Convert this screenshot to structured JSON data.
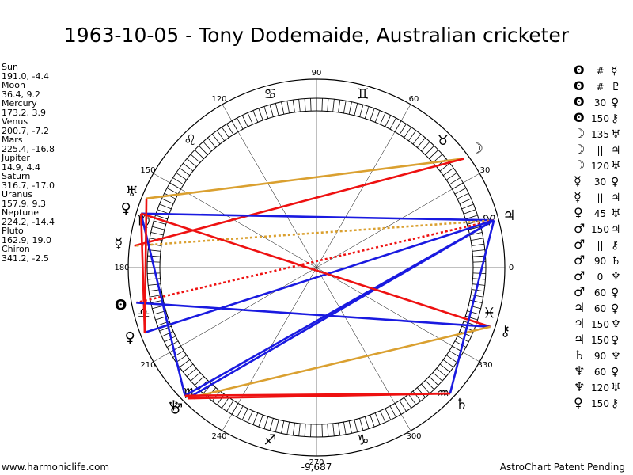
{
  "title": "1963-10-05 - Tony Dodemaide, Australian cricketer",
  "planets": [
    {
      "name": "Sun",
      "glyph": "ʘ",
      "lon": 191.0,
      "lat": -4.4,
      "pos": "191.0, -4.4"
    },
    {
      "name": "Moon",
      "glyph": "☽",
      "lon": 36.4,
      "lat": 9.2,
      "pos": "36.4, 9.2"
    },
    {
      "name": "Mercury",
      "glyph": "☿",
      "lon": 173.2,
      "lat": 3.9,
      "pos": "173.2, 3.9"
    },
    {
      "name": "Venus",
      "glyph": "♀",
      "lon": 200.7,
      "lat": -7.2,
      "pos": "200.7, -7.2"
    },
    {
      "name": "Mars",
      "glyph": "♂",
      "lon": 225.4,
      "lat": -16.8,
      "pos": "225.4, -16.8"
    },
    {
      "name": "Jupiter",
      "glyph": "♃",
      "lon": 14.9,
      "lat": 4.4,
      "pos": "14.9, 4.4"
    },
    {
      "name": "Saturn",
      "glyph": "♄",
      "lon": 316.7,
      "lat": -17.0,
      "pos": "316.7, -17.0"
    },
    {
      "name": "Uranus",
      "glyph": "♅",
      "lon": 157.9,
      "lat": 9.3,
      "pos": "157.9, 9.3"
    },
    {
      "name": "Neptune",
      "glyph": "♆",
      "lon": 224.2,
      "lat": -14.4,
      "pos": "224.2, -14.4"
    },
    {
      "name": "Pluto",
      "glyph": "♀",
      "lon": 162.9,
      "lat": 19.0,
      "pos": "162.9, 19.0"
    },
    {
      "name": "Chiron",
      "glyph": "⚷",
      "lon": 341.2,
      "lat": -2.5,
      "pos": "341.2, -2.5"
    }
  ],
  "aspects": [
    {
      "p1": "ʘ",
      "angle": "#",
      "p2": "☿"
    },
    {
      "p1": "ʘ",
      "angle": "#",
      "p2": "♇"
    },
    {
      "p1": "ʘ",
      "angle": "30",
      "p2": "♀"
    },
    {
      "p1": "ʘ",
      "angle": "150",
      "p2": "⚷"
    },
    {
      "p1": "☽",
      "angle": "135",
      "p2": "♅"
    },
    {
      "p1": "☽",
      "angle": "||",
      "p2": "♃"
    },
    {
      "p1": "☽",
      "angle": "120",
      "p2": "♅"
    },
    {
      "p1": "☿",
      "angle": "30",
      "p2": "♀"
    },
    {
      "p1": "☿",
      "angle": "||",
      "p2": "♃"
    },
    {
      "p1": "♀",
      "angle": "45",
      "p2": "♅"
    },
    {
      "p1": "♂",
      "angle": "150",
      "p2": "♃"
    },
    {
      "p1": "♂",
      "angle": "||",
      "p2": "⚷"
    },
    {
      "p1": "♂",
      "angle": "90",
      "p2": "♄"
    },
    {
      "p1": "♂",
      "angle": "0",
      "p2": "♆"
    },
    {
      "p1": "♂",
      "angle": "60",
      "p2": "♀"
    },
    {
      "p1": "♃",
      "angle": "60",
      "p2": "♀"
    },
    {
      "p1": "♃",
      "angle": "150",
      "p2": "♆"
    },
    {
      "p1": "♃",
      "angle": "150",
      "p2": "♀"
    },
    {
      "p1": "♄",
      "angle": "90",
      "p2": "♆"
    },
    {
      "p1": "♆",
      "angle": "60",
      "p2": "♀"
    },
    {
      "p1": "♆",
      "angle": "120",
      "p2": "♅"
    },
    {
      "p1": "♀",
      "angle": "150",
      "p2": "⚷"
    }
  ],
  "degree_labels": [
    "0",
    "30",
    "60",
    "90",
    "120",
    "150",
    "180",
    "210",
    "240",
    "270",
    "300",
    "330"
  ],
  "zodiac_signs": [
    "♈",
    "♉",
    "♊",
    "♋",
    "♌",
    "♍",
    "♎",
    "♏",
    "♐",
    "♑",
    "♒",
    "♓"
  ],
  "footer": {
    "left": "www.harmoniclife.com",
    "center": "-9,687",
    "right": "AstroChart Patent Pending"
  },
  "colors": {
    "red": "#ee1111",
    "blue": "#1a1ae0",
    "gold": "#daa030",
    "background": "#ffffff",
    "ink": "#000000"
  },
  "lines": [
    {
      "from": "Moon",
      "to": "Uranus",
      "color": "gold",
      "style": "solid"
    },
    {
      "from": "Moon",
      "to": "Mercury",
      "color": "red",
      "style": "solid"
    },
    {
      "from": "Jupiter",
      "to": "Pluto",
      "color": "blue",
      "style": "solid"
    },
    {
      "from": "Jupiter",
      "to": "Mercury",
      "color": "gold",
      "style": "dotted"
    },
    {
      "from": "Jupiter",
      "to": "Sun",
      "color": "red",
      "style": "dotted"
    },
    {
      "from": "Jupiter",
      "to": "Neptune",
      "color": "blue",
      "style": "solid"
    },
    {
      "from": "Jupiter",
      "to": "Mars",
      "color": "blue",
      "style": "solid"
    },
    {
      "from": "Jupiter",
      "to": "Venus",
      "color": "blue",
      "style": "solid"
    },
    {
      "from": "Pluto",
      "to": "Chiron",
      "color": "red",
      "style": "solid"
    },
    {
      "from": "Pluto",
      "to": "Neptune",
      "color": "blue",
      "style": "solid"
    },
    {
      "from": "Pluto",
      "to": "Venus",
      "color": "red",
      "style": "solid"
    },
    {
      "from": "Sun",
      "to": "Chiron",
      "color": "blue",
      "style": "solid"
    },
    {
      "from": "Chiron",
      "to": "Mars",
      "color": "gold",
      "style": "solid"
    },
    {
      "from": "Saturn",
      "to": "Mars",
      "color": "red",
      "style": "solid"
    },
    {
      "from": "Saturn",
      "to": "Neptune",
      "color": "red",
      "style": "solid"
    },
    {
      "from": "Saturn",
      "to": "Jupiter",
      "color": "blue",
      "style": "solid"
    },
    {
      "from": "Uranus",
      "to": "Venus",
      "color": "red",
      "style": "solid"
    }
  ]
}
